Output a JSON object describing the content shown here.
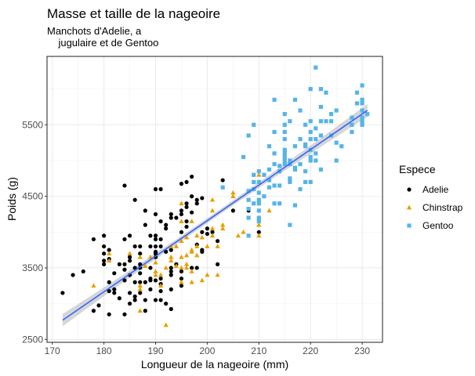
{
  "chart_data": {
    "type": "scatter",
    "title": "Masse et taille de la nageoire",
    "subtitle": "Manchots d'Adelie, a\n    jugulaire et de Gentoo",
    "xlabel": "Longueur de la nageoire (mm)",
    "ylabel": "Poids (g)",
    "xlim": [
      169,
      234
    ],
    "ylim": [
      2460,
      6460
    ],
    "xticks": [
      170,
      180,
      190,
      200,
      210,
      220,
      230
    ],
    "yticks": [
      2500,
      3500,
      4500,
      5500
    ],
    "grid": true,
    "legend": {
      "title": "Espece",
      "placement": "right"
    },
    "trend": {
      "type": "linear",
      "intercept": -5780,
      "slope": 49.7,
      "x_range": [
        172,
        231
      ],
      "confidence_band": true,
      "color": "#3366FF"
    },
    "series": [
      {
        "name": "Adelie",
        "color": "#000000",
        "shape": "circle",
        "points": [
          [
            172,
            3150
          ],
          [
            174,
            3400
          ],
          [
            176,
            3450
          ],
          [
            178,
            3900
          ],
          [
            178,
            2900
          ],
          [
            179,
            2975
          ],
          [
            180,
            3950
          ],
          [
            180,
            3800
          ],
          [
            180,
            3700
          ],
          [
            180,
            3600
          ],
          [
            180,
            3550
          ],
          [
            181,
            3750
          ],
          [
            181,
            3625
          ],
          [
            181,
            3300
          ],
          [
            181,
            3175
          ],
          [
            181,
            2850
          ],
          [
            182,
            3425
          ],
          [
            182,
            3200
          ],
          [
            182,
            3150
          ],
          [
            183,
            3550
          ],
          [
            183,
            3075
          ],
          [
            184,
            4650
          ],
          [
            184,
            3900
          ],
          [
            184,
            3550
          ],
          [
            184,
            3475
          ],
          [
            184,
            3325
          ],
          [
            184,
            2850
          ],
          [
            185,
            3950
          ],
          [
            185,
            3650
          ],
          [
            185,
            3600
          ],
          [
            185,
            3400
          ],
          [
            185,
            3150
          ],
          [
            185,
            3000
          ],
          [
            186,
            4450
          ],
          [
            186,
            3800
          ],
          [
            186,
            3500
          ],
          [
            186,
            3300
          ],
          [
            186,
            3100
          ],
          [
            186,
            3050
          ],
          [
            187,
            3800
          ],
          [
            187,
            3700
          ],
          [
            187,
            3550
          ],
          [
            187,
            3500
          ],
          [
            187,
            3425
          ],
          [
            187,
            3300
          ],
          [
            187,
            3150
          ],
          [
            188,
            4300
          ],
          [
            188,
            4100
          ],
          [
            188,
            3300
          ],
          [
            188,
            3050
          ],
          [
            188,
            2900
          ],
          [
            189,
            3950
          ],
          [
            189,
            3800
          ],
          [
            189,
            3500
          ],
          [
            189,
            3350
          ],
          [
            189,
            3325
          ],
          [
            189,
            3200
          ],
          [
            190,
            4600
          ],
          [
            190,
            4250
          ],
          [
            190,
            3950
          ],
          [
            190,
            3900
          ],
          [
            190,
            3800
          ],
          [
            190,
            3725
          ],
          [
            190,
            3700
          ],
          [
            190,
            3650
          ],
          [
            190,
            3325
          ],
          [
            190,
            3050
          ],
          [
            191,
            4600
          ],
          [
            191,
            4150
          ],
          [
            191,
            3900
          ],
          [
            191,
            3800
          ],
          [
            191,
            3350
          ],
          [
            191,
            3275
          ],
          [
            191,
            3175
          ],
          [
            191,
            3050
          ],
          [
            192,
            4100
          ],
          [
            192,
            4050
          ],
          [
            192,
            3725
          ],
          [
            192,
            3000
          ],
          [
            193,
            4250
          ],
          [
            193,
            4200
          ],
          [
            193,
            3750
          ],
          [
            193,
            3500
          ],
          [
            193,
            3450
          ],
          [
            193,
            3400
          ],
          [
            193,
            3200
          ],
          [
            193,
            2925
          ],
          [
            194,
            4200
          ],
          [
            194,
            3550
          ],
          [
            195,
            4675
          ],
          [
            195,
            4300
          ],
          [
            195,
            4250
          ],
          [
            195,
            4000
          ],
          [
            195,
            3450
          ],
          [
            195,
            3350
          ],
          [
            195,
            3250
          ],
          [
            196,
            4700
          ],
          [
            196,
            4400
          ],
          [
            196,
            4350
          ],
          [
            196,
            4150
          ],
          [
            196,
            4075
          ],
          [
            197,
            4775
          ],
          [
            197,
            4500
          ],
          [
            197,
            4275
          ],
          [
            197,
            3500
          ],
          [
            198,
            4450
          ],
          [
            198,
            4400
          ],
          [
            198,
            3825
          ],
          [
            198,
            3500
          ],
          [
            199,
            4475
          ],
          [
            199,
            4000
          ],
          [
            199,
            3750
          ],
          [
            199,
            3725
          ],
          [
            200,
            4050
          ],
          [
            200,
            3975
          ],
          [
            201,
            4000
          ],
          [
            202,
            3875
          ],
          [
            202,
            3550
          ],
          [
            203,
            4725
          ],
          [
            205,
            4300
          ],
          [
            208,
            4300
          ],
          [
            210,
            4000
          ]
        ]
      },
      {
        "name": "Chinstrap",
        "color": "#E69F00",
        "shape": "triangle",
        "points": [
          [
            178,
            3250
          ],
          [
            181,
            3700
          ],
          [
            181,
            3600
          ],
          [
            185,
            3700
          ],
          [
            187,
            3650
          ],
          [
            187,
            3250
          ],
          [
            187,
            3200
          ],
          [
            187,
            2900
          ],
          [
            188,
            3525
          ],
          [
            189,
            3650
          ],
          [
            190,
            3450
          ],
          [
            190,
            3400
          ],
          [
            190,
            3575
          ],
          [
            191,
            3400
          ],
          [
            191,
            3250
          ],
          [
            192,
            3500
          ],
          [
            192,
            2700
          ],
          [
            193,
            3800
          ],
          [
            193,
            3650
          ],
          [
            193,
            3600
          ],
          [
            194,
            3800
          ],
          [
            194,
            3525
          ],
          [
            195,
            4400
          ],
          [
            195,
            4150
          ],
          [
            195,
            3875
          ],
          [
            195,
            3650
          ],
          [
            195,
            3500
          ],
          [
            195,
            3300
          ],
          [
            196,
            3925
          ],
          [
            196,
            3675
          ],
          [
            196,
            3550
          ],
          [
            196,
            3500
          ],
          [
            197,
            4150
          ],
          [
            197,
            3750
          ],
          [
            197,
            3725
          ],
          [
            197,
            3450
          ],
          [
            197,
            3300
          ],
          [
            198,
            3950
          ],
          [
            198,
            3800
          ],
          [
            198,
            3675
          ],
          [
            199,
            3925
          ],
          [
            199,
            3325
          ],
          [
            200,
            3800
          ],
          [
            200,
            3400
          ],
          [
            201,
            4450
          ],
          [
            201,
            4300
          ],
          [
            201,
            4050
          ],
          [
            201,
            3950
          ],
          [
            202,
            3800
          ],
          [
            202,
            3400
          ],
          [
            203,
            4100
          ],
          [
            203,
            4050
          ],
          [
            205,
            4550
          ],
          [
            205,
            4500
          ],
          [
            206,
            3950
          ],
          [
            207,
            4000
          ],
          [
            210,
            4800
          ],
          [
            210,
            4100
          ],
          [
            210,
            3950
          ],
          [
            212,
            4300
          ]
        ]
      },
      {
        "name": "Gentoo",
        "color": "#56B4E9",
        "shape": "square",
        "points": [
          [
            203,
            4625
          ],
          [
            221,
            6300
          ],
          [
            220,
            6000
          ],
          [
            222,
            6000
          ],
          [
            223,
            5950
          ],
          [
            230,
            6050
          ],
          [
            229,
            5950
          ],
          [
            229,
            5800
          ],
          [
            230,
            5850
          ],
          [
            230,
            5800
          ],
          [
            230,
            5700
          ],
          [
            230,
            5600
          ],
          [
            230,
            5550
          ],
          [
            230,
            5500
          ],
          [
            231,
            5650
          ],
          [
            228,
            5600
          ],
          [
            228,
            5500
          ],
          [
            228,
            5400
          ],
          [
            225,
            5700
          ],
          [
            224,
            5650
          ],
          [
            223,
            5550
          ],
          [
            224,
            5550
          ],
          [
            222,
            5550
          ],
          [
            222,
            5750
          ],
          [
            220,
            5550
          ],
          [
            218,
            5700
          ],
          [
            217,
            5850
          ],
          [
            213,
            5850
          ],
          [
            215,
            5650
          ],
          [
            216,
            5550
          ],
          [
            215,
            5500
          ],
          [
            219,
            5500
          ],
          [
            221,
            5450
          ],
          [
            220,
            5400
          ],
          [
            222,
            5350
          ],
          [
            213,
            5400
          ],
          [
            215,
            5400
          ],
          [
            215,
            5300
          ],
          [
            218,
            5300
          ],
          [
            220,
            5300
          ],
          [
            221,
            5300
          ],
          [
            224,
            5350
          ],
          [
            225,
            5250
          ],
          [
            226,
            5200
          ],
          [
            217,
            5200
          ],
          [
            219,
            5225
          ],
          [
            219,
            5200
          ],
          [
            212,
            5200
          ],
          [
            208,
            5350
          ],
          [
            209,
            5500
          ],
          [
            207,
            5050
          ],
          [
            213,
            5100
          ],
          [
            215,
            5150
          ],
          [
            215,
            5100
          ],
          [
            215,
            5050
          ],
          [
            215,
            5000
          ],
          [
            216,
            5000
          ],
          [
            216,
            4950
          ],
          [
            215,
            4950
          ],
          [
            217,
            4900
          ],
          [
            217,
            4875
          ],
          [
            218,
            4950
          ],
          [
            220,
            5150
          ],
          [
            220,
            5050
          ],
          [
            220,
            5000
          ],
          [
            221,
            5100
          ],
          [
            221,
            5000
          ],
          [
            222,
            4875
          ],
          [
            225,
            5000
          ],
          [
            213,
            4950
          ],
          [
            214,
            4925
          ],
          [
            212,
            4875
          ],
          [
            210,
            4850
          ],
          [
            210,
            4700
          ],
          [
            211,
            4800
          ],
          [
            209,
            4800
          ],
          [
            209,
            4700
          ],
          [
            209,
            4600
          ],
          [
            208,
            4575
          ],
          [
            212,
            4725
          ],
          [
            212,
            4625
          ],
          [
            213,
            4650
          ],
          [
            214,
            4650
          ],
          [
            214,
            4850
          ],
          [
            216,
            4750
          ],
          [
            216,
            4700
          ],
          [
            219,
            4850
          ],
          [
            219,
            4700
          ],
          [
            220,
            4700
          ],
          [
            218,
            4600
          ],
          [
            211,
            4500
          ],
          [
            210,
            4550
          ],
          [
            210,
            4450
          ],
          [
            210,
            4400
          ],
          [
            208,
            4450
          ],
          [
            209,
            4400
          ],
          [
            208,
            4325
          ],
          [
            210,
            4300
          ],
          [
            208,
            4200
          ],
          [
            210,
            4200
          ],
          [
            210,
            4150
          ],
          [
            213,
            4400
          ],
          [
            214,
            4400
          ],
          [
            217,
            4375
          ],
          [
            216,
            4100
          ],
          [
            208,
            3950
          ]
        ]
      }
    ]
  }
}
